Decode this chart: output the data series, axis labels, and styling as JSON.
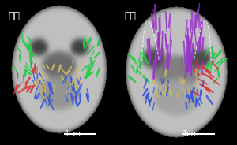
{
  "left_label": "サル",
  "right_label": "ヒト",
  "scale_bar_text": "1cm",
  "background_color": "#000000",
  "left_bg_color": "#1a1a1a",
  "right_bg_color": "#1a1a1a",
  "label_color": "#ffffff",
  "label_fontsize": 9,
  "scalebar_fontsize": 7,
  "fig_width": 3.0,
  "fig_height": 1.84,
  "dpi": 100
}
